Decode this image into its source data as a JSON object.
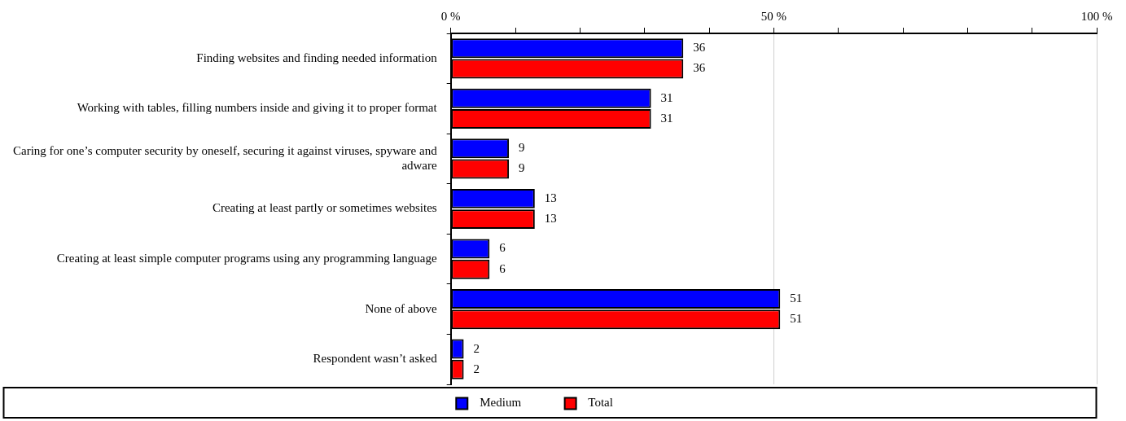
{
  "chart_data": {
    "type": "bar",
    "orientation": "horizontal",
    "categories": [
      "Finding websites and finding needed information",
      "Working with tables, filling numbers inside and giving it to proper format",
      "Caring for one’s computer security by oneself, securing it against viruses, spyware and adware",
      "Creating at least partly or sometimes websites",
      "Creating at least simple computer programs using any programming language",
      "None of above",
      "Respondent wasn’t asked"
    ],
    "series": [
      {
        "name": "Medium",
        "color": "#0000ff",
        "values": [
          36,
          31,
          9,
          13,
          6,
          51,
          2
        ]
      },
      {
        "name": "Total",
        "color": "#ff0000",
        "values": [
          36,
          31,
          9,
          13,
          6,
          51,
          2
        ]
      }
    ],
    "xlim": [
      0,
      100
    ],
    "xticks": [
      {
        "value": 0,
        "label": "0 %"
      },
      {
        "value": 10,
        "label": null
      },
      {
        "value": 20,
        "label": null
      },
      {
        "value": 30,
        "label": null
      },
      {
        "value": 40,
        "label": null
      },
      {
        "value": 50,
        "label": "50 %"
      },
      {
        "value": 60,
        "label": null
      },
      {
        "value": 70,
        "label": null
      },
      {
        "value": 80,
        "label": null
      },
      {
        "value": 90,
        "label": null
      },
      {
        "value": 100,
        "label": "100 %"
      }
    ],
    "grid": "x",
    "legend": "bottom",
    "data_labels": true
  }
}
